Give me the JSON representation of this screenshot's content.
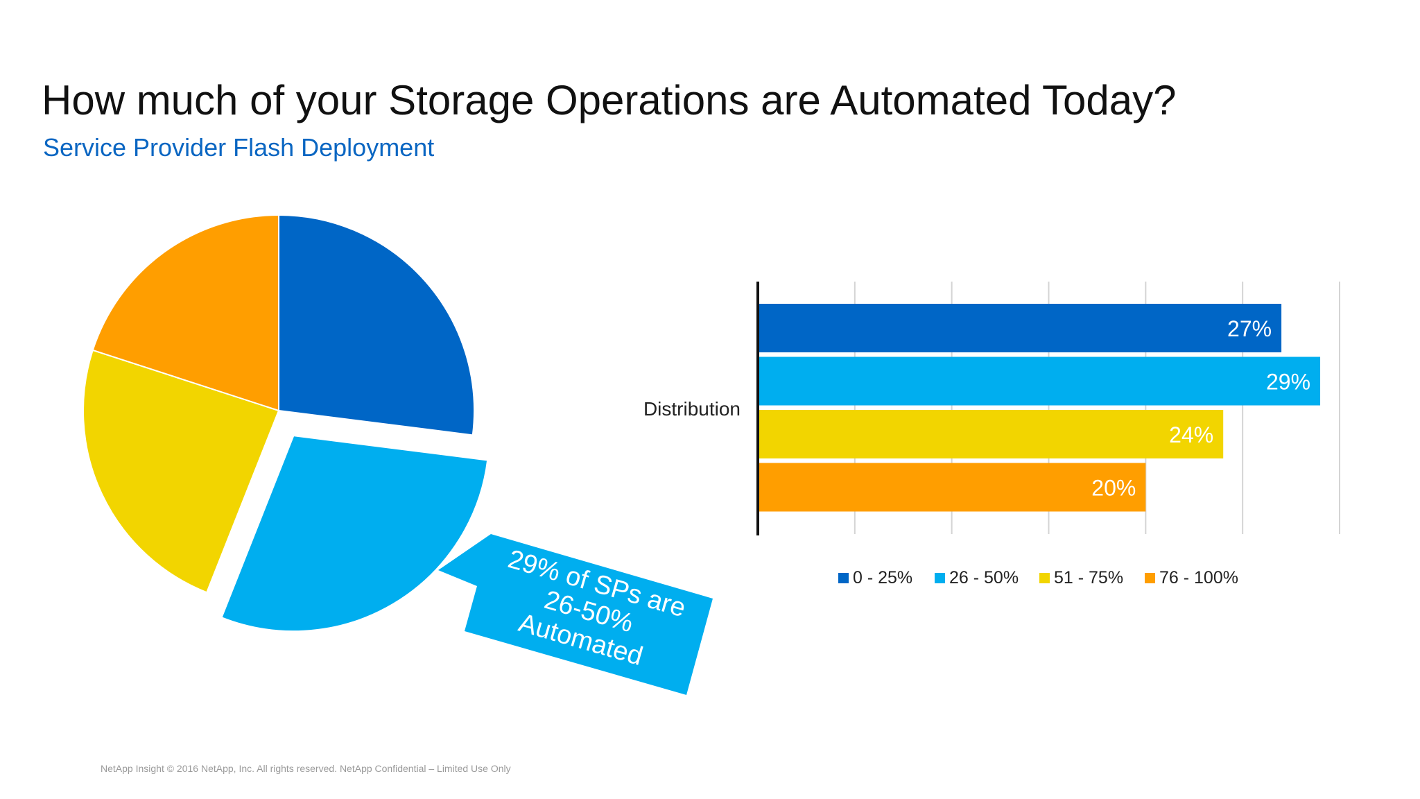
{
  "slide": {
    "title": "How much of your Storage Operations are Automated Today?",
    "subtitle": "Service Provider Flash Deployment",
    "footer": "NetApp Insight  © 2016 NetApp, Inc. All rights reserved. NetApp Confidential – Limited Use Only"
  },
  "callout": {
    "lines": [
      "29% of SPs are",
      "26-50%",
      "Automated"
    ],
    "color": "#00aeef"
  },
  "chart_data": [
    {
      "type": "pie",
      "categories": [
        "0 - 25%",
        "26 - 50%",
        "51 - 75%",
        "76 - 100%"
      ],
      "values": [
        27,
        29,
        24,
        20
      ],
      "colors": [
        "#0066c6",
        "#00aeef",
        "#f2d500",
        "#ff9e00"
      ],
      "exploded": "26 - 50%"
    },
    {
      "type": "bar",
      "orientation": "horizontal",
      "category_label": "Distribution",
      "categories": [
        "0 - 25%",
        "26 - 50%",
        "51 - 75%",
        "76 - 100%"
      ],
      "values": [
        27,
        29,
        24,
        20
      ],
      "data_labels": [
        "27%",
        "29%",
        "24%",
        "20%"
      ],
      "colors": [
        "#0066c6",
        "#00aeef",
        "#f2d500",
        "#ff9e00"
      ],
      "xlim": [
        0,
        30
      ],
      "grid": true,
      "legend": {
        "position": "bottom",
        "entries": [
          "0 - 25%",
          "26 - 50%",
          "51 - 75%",
          "76 - 100%"
        ]
      }
    }
  ]
}
